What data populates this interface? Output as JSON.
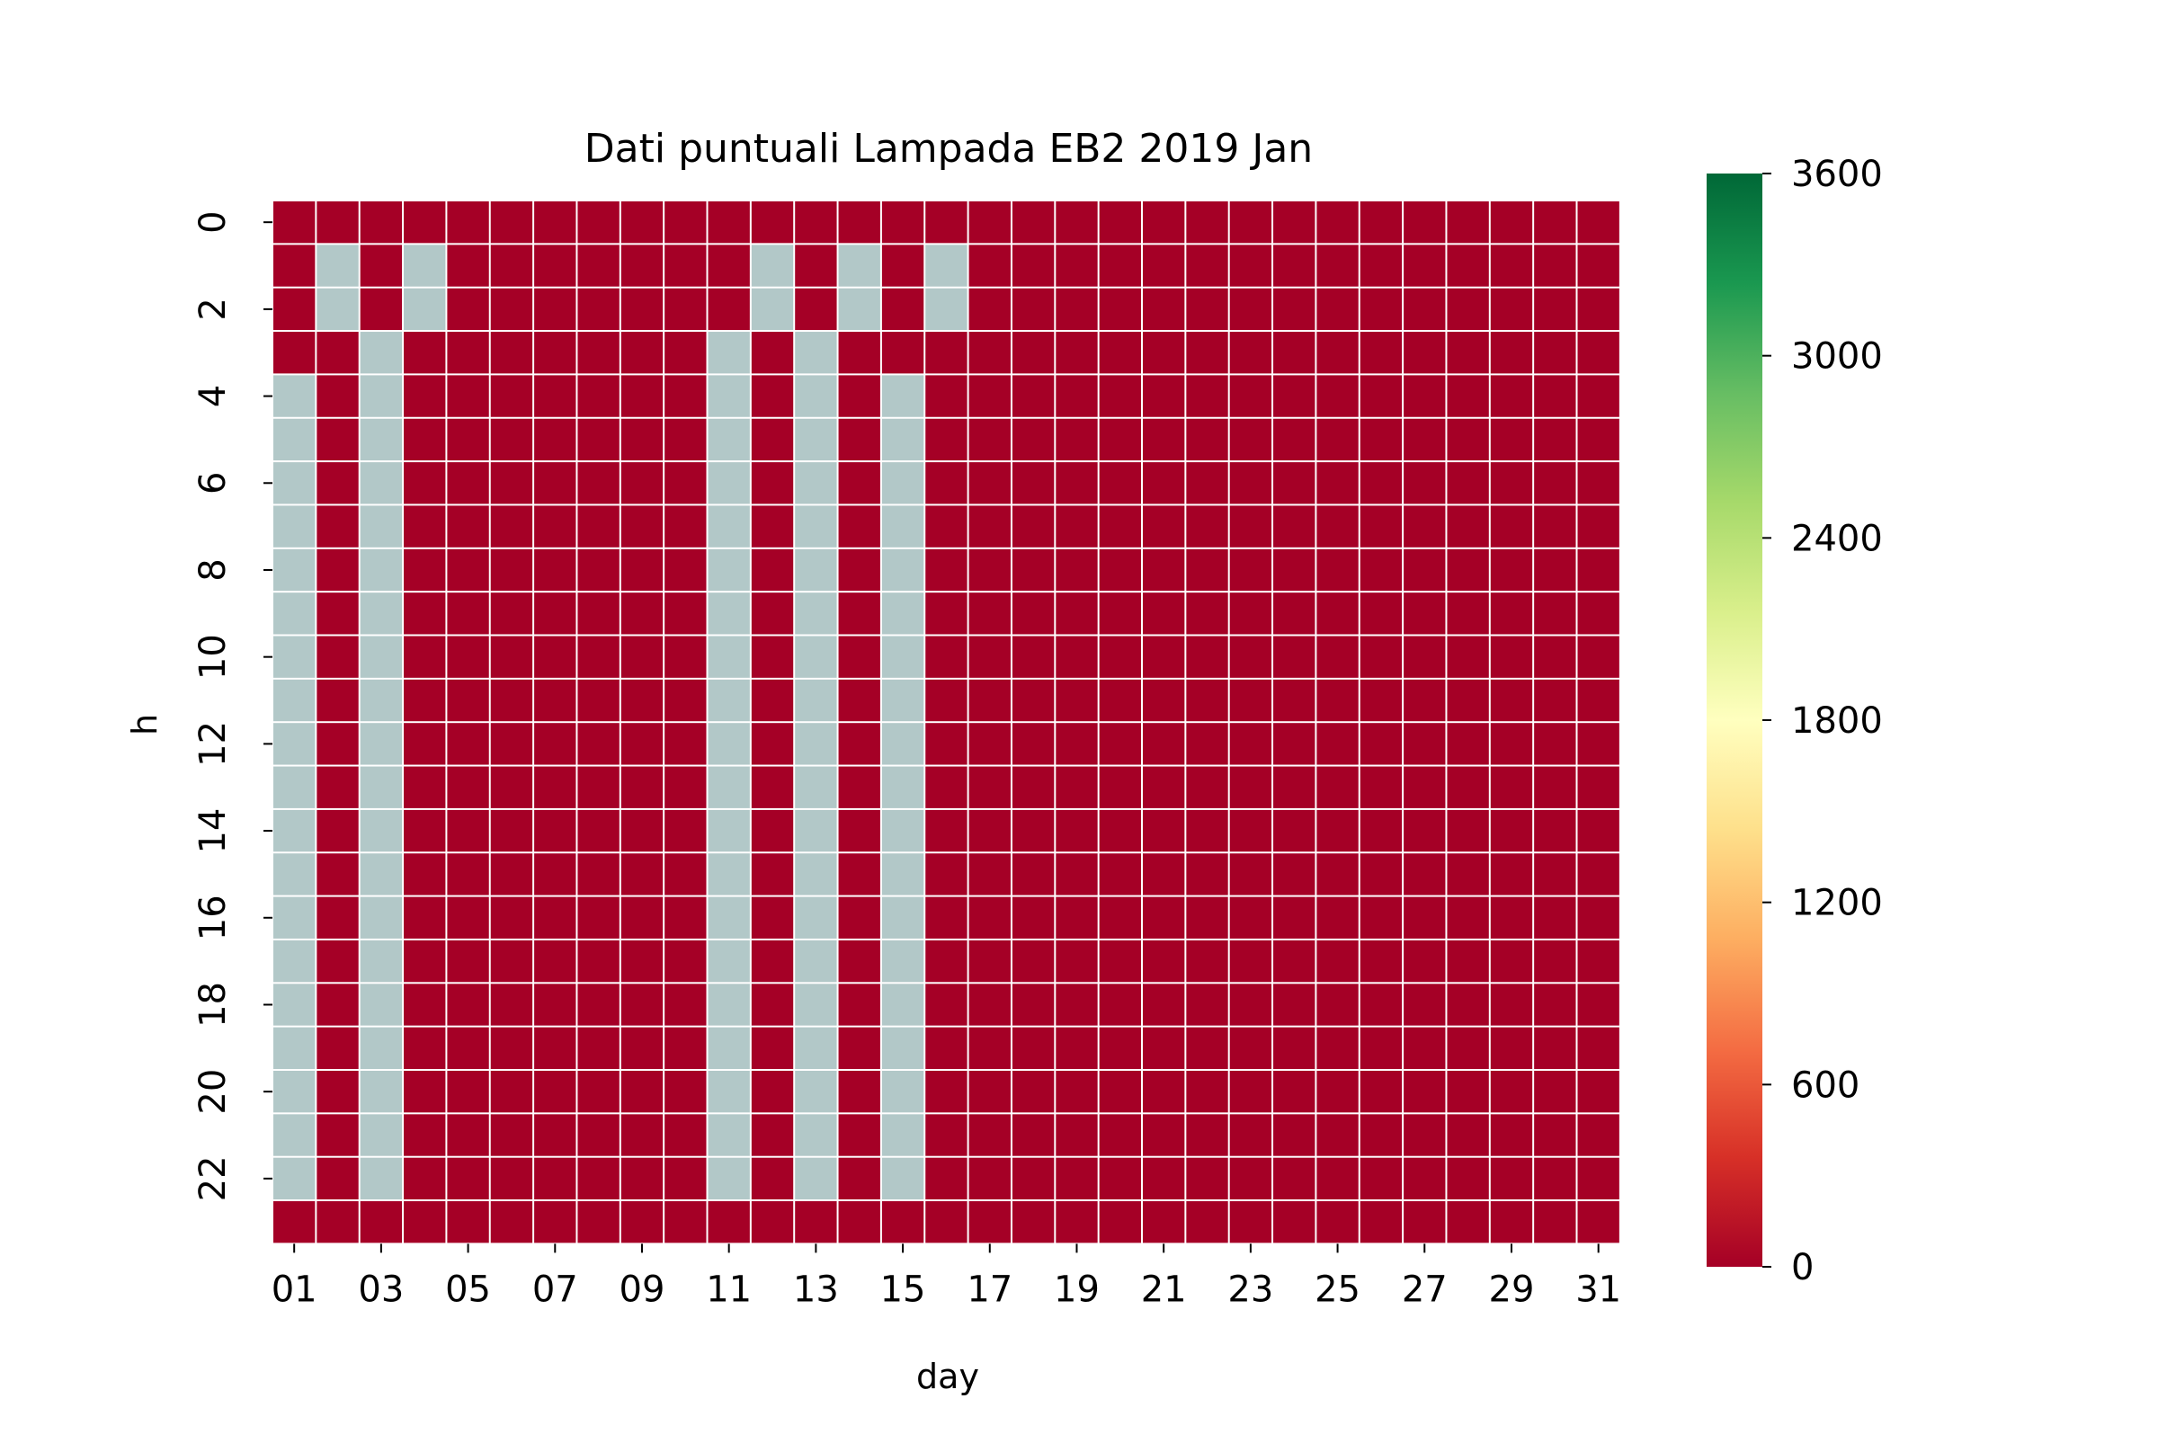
{
  "chart_data": {
    "type": "heatmap",
    "title": "Dati puntuali Lampada EB2 2019 Jan",
    "xlabel": "day",
    "ylabel": "h",
    "x_categories": [
      "01",
      "02",
      "03",
      "04",
      "05",
      "06",
      "07",
      "08",
      "09",
      "10",
      "11",
      "12",
      "13",
      "14",
      "15",
      "16",
      "17",
      "18",
      "19",
      "20",
      "21",
      "22",
      "23",
      "24",
      "25",
      "26",
      "27",
      "28",
      "29",
      "30",
      "31"
    ],
    "x_tick_labels": [
      "01",
      "03",
      "05",
      "07",
      "09",
      "11",
      "13",
      "15",
      "17",
      "19",
      "21",
      "23",
      "25",
      "27",
      "29",
      "31"
    ],
    "y_categories": [
      0,
      1,
      2,
      3,
      4,
      5,
      6,
      7,
      8,
      9,
      10,
      11,
      12,
      13,
      14,
      15,
      16,
      17,
      18,
      19,
      20,
      21,
      22,
      23
    ],
    "y_tick_labels": [
      "0",
      "2",
      "4",
      "6",
      "8",
      "10",
      "12",
      "14",
      "16",
      "18",
      "20",
      "22"
    ],
    "value_range": [
      0,
      3600
    ],
    "colorbar": {
      "ticks": [
        0,
        600,
        1200,
        1800,
        2400,
        3000,
        3600
      ],
      "tick_labels": [
        "0",
        "600",
        "1200",
        "1800",
        "2400",
        "3000",
        "3600"
      ],
      "colormap": "RdYlGn",
      "stops": [
        "#a50026",
        "#d73027",
        "#f46d43",
        "#fdae61",
        "#fee08b",
        "#ffffbf",
        "#d9ef8b",
        "#a6d96a",
        "#66bd63",
        "#1a9850",
        "#006837"
      ]
    },
    "cell_value_note": "All shown cells have value 0; missing (no-data) cells are shown in grey",
    "zero_color": "#a50026",
    "missing_color": "#b2c8c8",
    "missing_cells": {
      "01": [
        4,
        5,
        6,
        7,
        8,
        9,
        10,
        11,
        12,
        13,
        14,
        15,
        16,
        17,
        18,
        19,
        20,
        21,
        22
      ],
      "02": [
        1,
        2
      ],
      "03": [
        3,
        4,
        5,
        6,
        7,
        8,
        9,
        10,
        11,
        12,
        13,
        14,
        15,
        16,
        17,
        18,
        19,
        20,
        21,
        22
      ],
      "04": [
        1,
        2
      ],
      "11": [
        3,
        4,
        5,
        6,
        7,
        8,
        9,
        10,
        11,
        12,
        13,
        14,
        15,
        16,
        17,
        18,
        19,
        20,
        21,
        22
      ],
      "12": [
        1,
        2
      ],
      "13": [
        3,
        4,
        5,
        6,
        7,
        8,
        9,
        10,
        11,
        12,
        13,
        14,
        15,
        16,
        17,
        18,
        19,
        20,
        21,
        22
      ],
      "14": [
        1,
        2
      ],
      "15": [
        4,
        5,
        6,
        7,
        8,
        9,
        10,
        11,
        12,
        13,
        14,
        15,
        16,
        17,
        18,
        19,
        20,
        21,
        22
      ],
      "16": [
        1,
        2
      ]
    }
  }
}
